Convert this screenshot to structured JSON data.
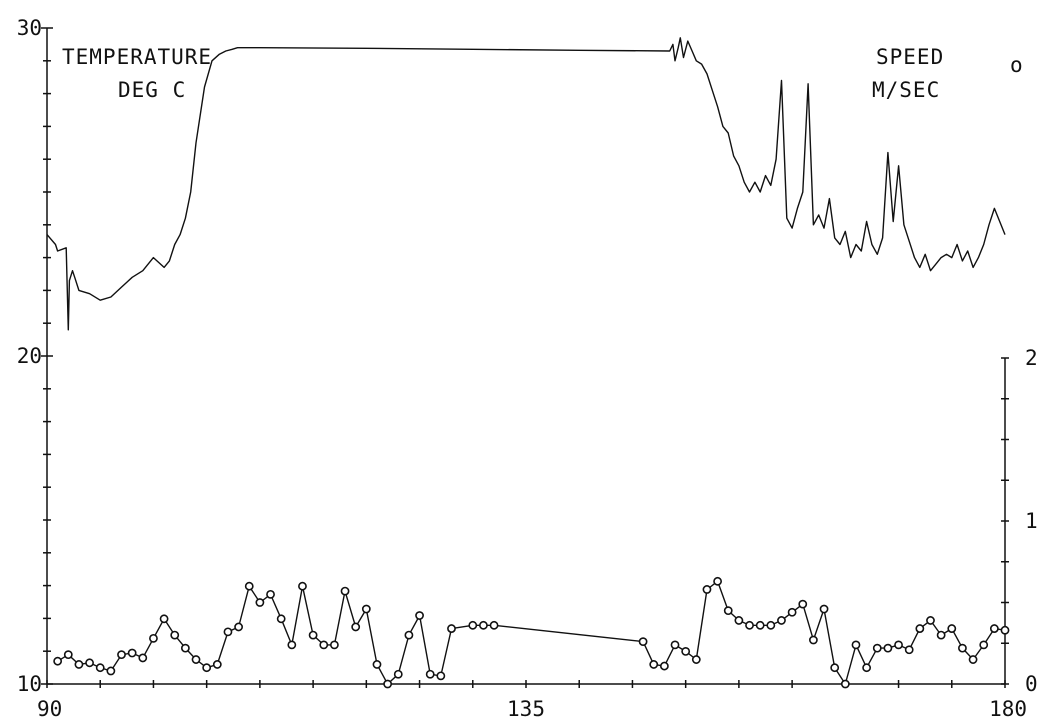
{
  "chart_data": {
    "type": "line",
    "x_axis": {
      "ticks": [
        90,
        135,
        180
      ],
      "tick_labels": [
        "90",
        "135",
        "180"
      ],
      "range": [
        90,
        180
      ]
    },
    "y_left": {
      "range": [
        10,
        30
      ],
      "ticks": [
        10,
        20,
        30
      ],
      "tick_labels": [
        "10",
        "20",
        "30"
      ]
    },
    "y_right": {
      "range": [
        0,
        2
      ],
      "ticks": [
        0,
        1,
        2
      ],
      "tick_labels": [
        "0",
        "1",
        "2"
      ]
    },
    "annotations": {
      "temp_label_1": "TEMPERATURE",
      "temp_label_2": "DEG C",
      "speed_label_1": "SPEED",
      "speed_label_2": "M/SEC",
      "speed_marker": "o"
    },
    "series": [
      {
        "axis": "left",
        "marker": "none",
        "x": [
          90.0,
          90.8,
          91.0,
          91.8,
          92.0,
          92.1,
          92.4,
          92.6,
          93.0,
          94.0,
          95.0,
          96.0,
          97.0,
          98.0,
          99.0,
          100.0,
          101.0,
          101.5,
          102.0,
          102.5,
          103.0,
          103.5,
          104.0,
          104.8,
          105.5,
          106.2,
          106.8,
          107.4,
          107.9,
          108.2,
          108.4,
          110.0,
          120.0,
          130.0,
          140.0,
          148.5,
          148.8,
          149.0,
          149.3,
          149.5,
          149.8,
          150.2,
          150.6,
          151.0,
          151.5,
          152.0,
          152.5,
          153.0,
          153.5,
          154.0,
          154.5,
          155.0,
          155.5,
          156.0,
          156.5,
          157.0,
          157.5,
          158.0,
          158.5,
          159.0,
          159.5,
          160.0,
          160.5,
          161.0,
          161.5,
          162.0,
          162.5,
          163.0,
          163.5,
          164.0,
          164.5,
          165.0,
          165.5,
          166.0,
          166.5,
          167.0,
          167.5,
          168.0,
          168.5,
          169.0,
          169.5,
          170.0,
          170.5,
          171.0,
          171.5,
          172.0,
          172.5,
          173.0,
          173.5,
          174.0,
          174.5,
          175.0,
          175.5,
          176.0,
          176.5,
          177.0,
          177.5,
          178.0,
          178.5,
          179.0,
          179.5,
          180.0
        ],
        "y": [
          23.7,
          23.4,
          23.2,
          23.3,
          20.8,
          22.3,
          22.6,
          22.4,
          22.0,
          21.9,
          21.7,
          21.8,
          22.1,
          22.4,
          22.6,
          23.0,
          22.7,
          22.9,
          23.4,
          23.7,
          24.2,
          25.0,
          26.5,
          28.2,
          29.0,
          29.2,
          29.3,
          29.35,
          29.4,
          29.4,
          29.4,
          29.4,
          29.38,
          29.35,
          29.32,
          29.3,
          29.5,
          29.0,
          29.4,
          29.7,
          29.1,
          29.6,
          29.3,
          29.0,
          28.9,
          28.6,
          28.1,
          27.6,
          27.0,
          26.8,
          26.1,
          25.8,
          25.3,
          25.0,
          25.3,
          25.0,
          25.5,
          25.2,
          26.0,
          28.4,
          24.2,
          23.9,
          24.5,
          25.0,
          28.3,
          24.0,
          24.3,
          23.9,
          24.8,
          23.6,
          23.4,
          23.8,
          23.0,
          23.4,
          23.2,
          24.1,
          23.4,
          23.1,
          23.6,
          26.2,
          24.1,
          25.8,
          24.0,
          23.5,
          23.0,
          22.7,
          23.1,
          22.6,
          22.8,
          23.0,
          23.1,
          23.0,
          23.4,
          22.9,
          23.2,
          22.7,
          23.0,
          23.4,
          24.0,
          24.5,
          24.1,
          23.7
        ]
      },
      {
        "axis": "right",
        "marker": "o",
        "x": [
          91.0,
          92.0,
          93.0,
          94.0,
          95.0,
          96.0,
          97.0,
          98.0,
          99.0,
          100.0,
          101.0,
          102.0,
          103.0,
          104.0,
          105.0,
          106.0,
          107.0,
          108.0,
          109.0,
          110.0,
          111.0,
          112.0,
          113.0,
          114.0,
          115.0,
          116.0,
          117.0,
          118.0,
          119.0,
          120.0,
          121.0,
          122.0,
          123.0,
          124.0,
          125.0,
          126.0,
          127.0,
          128.0,
          130.0,
          131.0,
          132.0,
          146.0,
          147.0,
          148.0,
          149.0,
          150.0,
          151.0,
          152.0,
          153.0,
          154.0,
          155.0,
          156.0,
          157.0,
          158.0,
          159.0,
          160.0,
          161.0,
          162.0,
          163.0,
          164.0,
          165.0,
          166.0,
          167.0,
          168.0,
          169.0,
          170.0,
          171.0,
          172.0,
          173.0,
          174.0,
          175.0,
          176.0,
          177.0,
          178.0,
          179.0,
          180.0
        ],
        "y": [
          0.14,
          0.18,
          0.12,
          0.13,
          0.1,
          0.08,
          0.18,
          0.19,
          0.16,
          0.28,
          0.4,
          0.3,
          0.22,
          0.15,
          0.1,
          0.12,
          0.32,
          0.35,
          0.6,
          0.5,
          0.55,
          0.4,
          0.24,
          0.6,
          0.3,
          0.24,
          0.24,
          0.57,
          0.35,
          0.46,
          0.12,
          0.0,
          0.06,
          0.3,
          0.42,
          0.06,
          0.05,
          0.34,
          0.36,
          0.36,
          0.36,
          0.26,
          0.12,
          0.11,
          0.24,
          0.2,
          0.15,
          0.58,
          0.63,
          0.45,
          0.39,
          0.36,
          0.36,
          0.36,
          0.39,
          0.44,
          0.49,
          0.27,
          0.46,
          0.1,
          0.0,
          0.24,
          0.1,
          0.22,
          0.22,
          0.24,
          0.21,
          0.34,
          0.39,
          0.3,
          0.34,
          0.22,
          0.15,
          0.24,
          0.34,
          0.33
        ]
      }
    ]
  }
}
